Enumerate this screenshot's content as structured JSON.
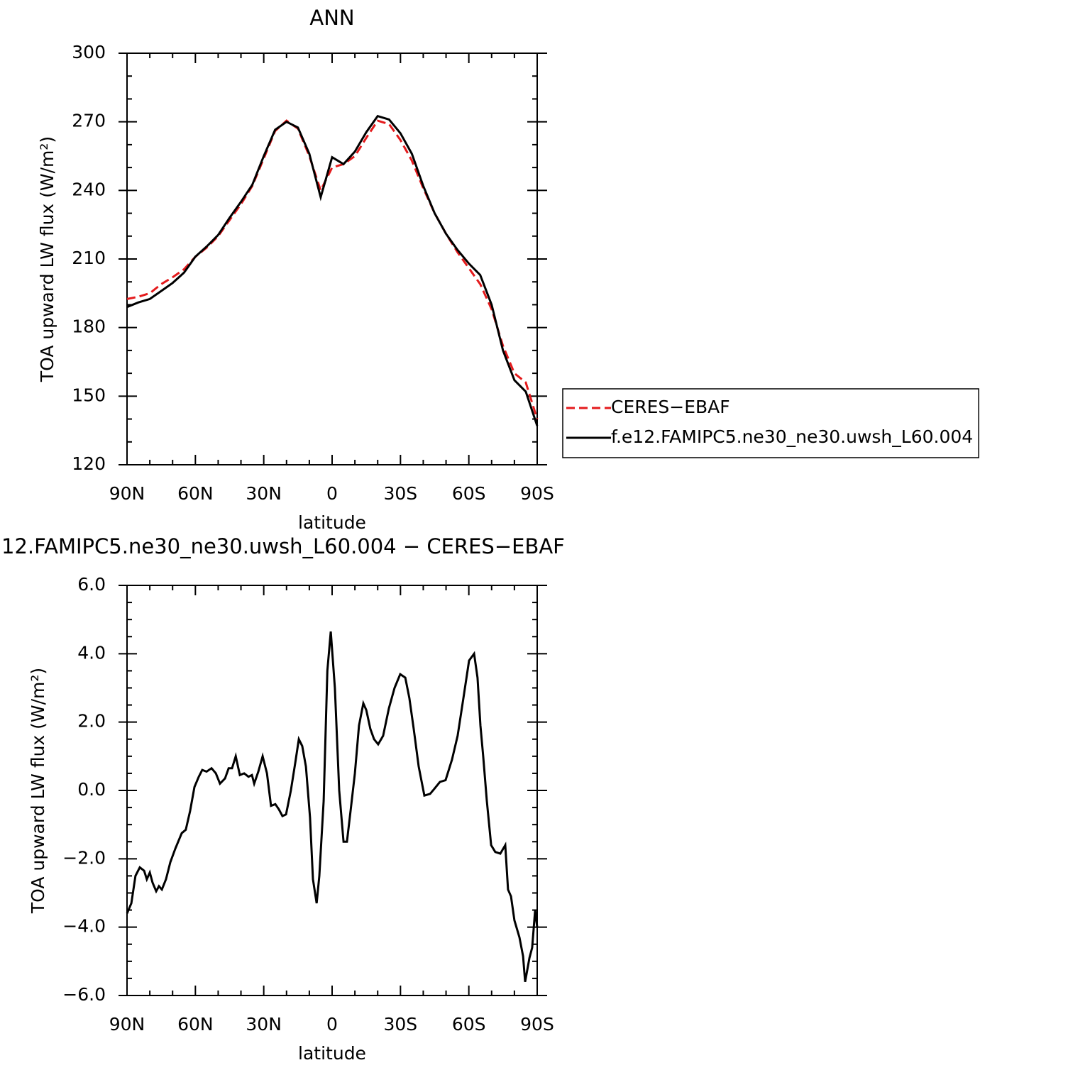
{
  "chart_data": [
    {
      "type": "line",
      "title": "ANN",
      "xlabel": "latitude",
      "ylabel": "TOA upward LW flux (W/m²)",
      "x": [
        90,
        85,
        80,
        75,
        70,
        65,
        60,
        55,
        50,
        45,
        40,
        35,
        30,
        25,
        20,
        15,
        10,
        5,
        0,
        -5,
        -10,
        -15,
        -20,
        -25,
        -30,
        -35,
        -40,
        -45,
        -50,
        -55,
        -60,
        -65,
        -70,
        -75,
        -80,
        -85,
        -90
      ],
      "series": [
        {
          "name": "CERES−EBAF",
          "color": "#e41a1c",
          "dash": true,
          "values": [
            192.5,
            193.5,
            195,
            199,
            202,
            205.5,
            211,
            215,
            220,
            227,
            234,
            242,
            254,
            266,
            270.5,
            267,
            255,
            240,
            250,
            251.5,
            255,
            263,
            270.5,
            269,
            262,
            253,
            241,
            230,
            221,
            213,
            206,
            199,
            188,
            172,
            160,
            156,
            140
          ]
        },
        {
          "name": "f.e12.FAMIPC5.ne30_ne30.uwsh_L60.004",
          "color": "#000000",
          "dash": false,
          "values": [
            189,
            191,
            192.5,
            196,
            199.5,
            204,
            211,
            215.5,
            220.5,
            228,
            235,
            242.5,
            255,
            266.5,
            270,
            267.5,
            256,
            237,
            254.5,
            251.5,
            257,
            265.5,
            272.5,
            271,
            265,
            256,
            242,
            230,
            221,
            214,
            208,
            203,
            190,
            170,
            157,
            152,
            137
          ]
        }
      ],
      "xlim": [
        90,
        -90
      ],
      "xticks": [
        {
          "value": 90,
          "label": "90N"
        },
        {
          "value": 60,
          "label": "60N"
        },
        {
          "value": 30,
          "label": "30N"
        },
        0,
        {
          "value": -30,
          "label": "30S"
        },
        {
          "value": -60,
          "label": "60S"
        },
        {
          "value": -90,
          "label": "90S"
        }
      ],
      "xminor": [
        80,
        70,
        50,
        40,
        20,
        10,
        -10,
        -20,
        -40,
        -50,
        -70,
        -80
      ],
      "ylim": [
        120,
        300
      ],
      "yticks": [
        120,
        150,
        180,
        210,
        240,
        270,
        300
      ],
      "yminor": [
        130,
        140,
        160,
        170,
        190,
        200,
        220,
        230,
        250,
        260,
        280,
        290
      ],
      "legend": "right"
    },
    {
      "type": "line",
      "title": "12.FAMIPC5.ne30_ne30.uwsh_L60.004 − CERES−EBAF",
      "xlabel": "latitude",
      "ylabel": "TOA upward LW flux (W/m²)",
      "x": [
        90,
        88.1,
        86.3,
        84.4,
        82.5,
        81.3,
        80,
        78.8,
        77.2,
        76,
        74.7,
        72.9,
        71,
        68.8,
        66,
        64.2,
        62.3,
        60.4,
        58.5,
        57,
        55.1,
        52.9,
        51,
        49.2,
        47,
        45.4,
        43.9,
        42.3,
        40.5,
        38.6,
        36.7,
        35.2,
        34.2,
        32.4,
        30.5,
        28.6,
        26.8,
        24.9,
        23.4,
        21.8,
        20.2,
        18.1,
        16.2,
        14.6,
        13.1,
        11.5,
        9.7,
        8.4,
        6.8,
        5.6,
        3.7,
        2.1,
        0.6,
        -1.2,
        -3.1,
        -5,
        -6.5,
        -8.1,
        -10,
        -11.8,
        -13.7,
        -15,
        -16.8,
        -18.4,
        -20.2,
        -22.4,
        -24.9,
        -27.4,
        -29.9,
        -32.1,
        -33.9,
        -35.8,
        -38,
        -40.5,
        -43,
        -44.9,
        -47.3,
        -49.8,
        -52.6,
        -55.1,
        -57.6,
        -60.1,
        -62.3,
        -63.8,
        -65.1,
        -66.3,
        -67.9,
        -69.8,
        -71.6,
        -73.8,
        -76,
        -77.2,
        -78.5,
        -80,
        -82.2,
        -83.8,
        -84.7,
        -86.6,
        -87.8,
        -89.1,
        -90
      ],
      "series": [
        {
          "color": "#000000",
          "dash": false,
          "values": [
            -3.6,
            -3.3,
            -2.5,
            -2.25,
            -2.35,
            -2.6,
            -2.4,
            -2.7,
            -2.95,
            -2.8,
            -2.9,
            -2.6,
            -2.1,
            -1.7,
            -1.25,
            -1.15,
            -0.6,
            0.1,
            0.4,
            0.6,
            0.55,
            0.65,
            0.5,
            0.2,
            0.35,
            0.65,
            0.65,
            1.0,
            0.45,
            0.5,
            0.4,
            0.45,
            0.2,
            0.55,
            1.0,
            0.5,
            -0.45,
            -0.4,
            -0.55,
            -0.75,
            -0.7,
            0.0,
            0.8,
            1.5,
            1.3,
            0.7,
            -0.8,
            -2.6,
            -3.3,
            -2.5,
            -0.3,
            3.5,
            4.65,
            3.0,
            0.0,
            -1.5,
            -1.5,
            -0.6,
            0.5,
            1.9,
            2.55,
            2.35,
            1.8,
            1.5,
            1.35,
            1.6,
            2.4,
            3.0,
            3.4,
            3.3,
            2.7,
            1.8,
            0.7,
            -0.15,
            -0.1,
            0.05,
            0.25,
            0.3,
            0.9,
            1.6,
            2.7,
            3.8,
            4.0,
            3.3,
            1.9,
            1.0,
            -0.3,
            -1.6,
            -1.8,
            -1.85,
            -1.6,
            -2.9,
            -3.1,
            -3.8,
            -4.3,
            -4.85,
            -5.6,
            -4.9,
            -4.6,
            -3.5,
            -4.0
          ]
        }
      ],
      "xlim": [
        90,
        -90
      ],
      "xticks": [
        {
          "value": 90,
          "label": "90N"
        },
        {
          "value": 60,
          "label": "60N"
        },
        {
          "value": 30,
          "label": "30N"
        },
        0,
        {
          "value": -30,
          "label": "30S"
        },
        {
          "value": -60,
          "label": "60S"
        },
        {
          "value": -90,
          "label": "90S"
        }
      ],
      "xminor": [
        80,
        70,
        50,
        40,
        20,
        10,
        -10,
        -20,
        -40,
        -50,
        -70,
        -80
      ],
      "ylim": [
        -6,
        6
      ],
      "yticks": [
        {
          "value": -6,
          "label": "−6.0"
        },
        {
          "value": -4,
          "label": "−4.0"
        },
        {
          "value": -2,
          "label": "−2.0"
        },
        {
          "value": 0,
          "label": "0.0"
        },
        {
          "value": 2,
          "label": "2.0"
        },
        {
          "value": 4,
          "label": "4.0"
        },
        {
          "value": 6,
          "label": "6.0"
        }
      ],
      "yminor": [
        -5.5,
        -5,
        -4.5,
        -3.5,
        -3,
        -2.5,
        -1.5,
        -1,
        -0.5,
        0.5,
        1,
        1.5,
        2.5,
        3,
        3.5,
        4.5,
        5,
        5.5
      ]
    }
  ]
}
